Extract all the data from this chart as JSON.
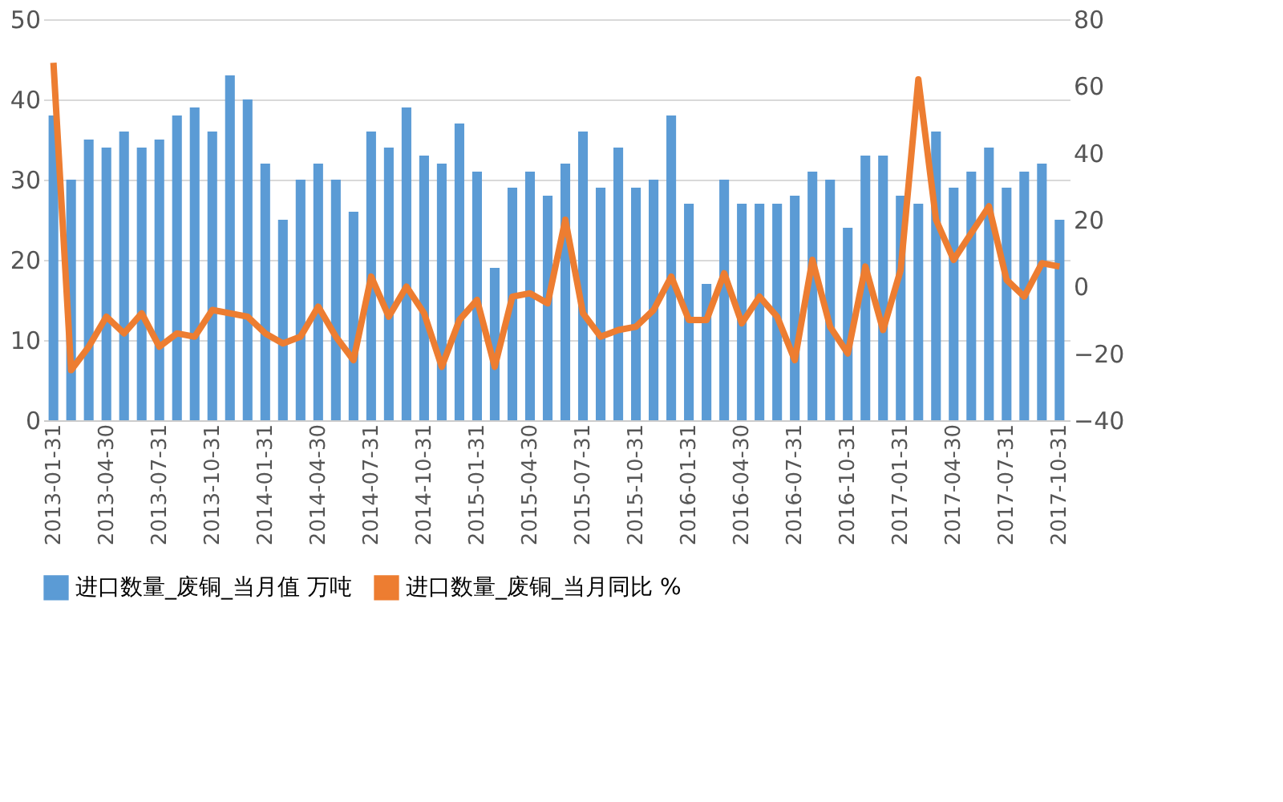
{
  "chart_data": {
    "type": "bar",
    "categories": [
      "2013-01-31",
      null,
      null,
      "2013-04-30",
      null,
      null,
      "2013-07-31",
      null,
      null,
      "2013-10-31",
      null,
      null,
      "2014-01-31",
      null,
      null,
      "2014-04-30",
      null,
      null,
      "2014-07-31",
      null,
      null,
      "2014-10-31",
      null,
      null,
      "2015-01-31",
      null,
      null,
      "2015-04-30",
      null,
      null,
      "2015-07-31",
      null,
      null,
      "2015-10-31",
      null,
      null,
      "2016-01-31",
      null,
      null,
      "2016-04-30",
      null,
      null,
      "2016-07-31",
      null,
      null,
      "2016-10-31",
      null,
      null,
      "2017-01-31",
      null,
      null,
      "2017-04-30",
      null,
      null,
      "2017-07-31",
      null,
      null,
      "2017-10-31"
    ],
    "series": [
      {
        "name": "进口数量_废铜_当月值 万吨",
        "color": "#5b9bd5",
        "values": [
          38,
          30,
          35,
          34,
          36,
          34,
          35,
          38,
          39,
          36,
          43,
          40,
          32,
          25,
          30,
          32,
          30,
          26,
          36,
          34,
          39,
          33,
          32,
          37,
          31,
          19,
          29,
          31,
          28,
          32,
          36,
          29,
          34,
          29,
          30,
          38,
          27,
          17,
          30,
          27,
          27,
          27,
          28,
          31,
          30,
          24,
          33,
          33,
          28,
          27,
          36,
          29,
          31,
          34,
          29,
          31,
          32,
          25
        ]
      },
      {
        "name": "进口数量_废铜_当月同比 %",
        "type": "line",
        "axis": "y2",
        "color": "#ed7d31",
        "values": [
          67,
          -25,
          -18,
          -9,
          -14,
          -8,
          -18,
          -14,
          -15,
          -7,
          -8,
          -9,
          -14,
          -17,
          -15,
          -6,
          -15,
          -22,
          3,
          -9,
          0,
          -8,
          -24,
          -10,
          -4,
          -24,
          -3,
          -2,
          -5,
          20,
          -8,
          -15,
          -13,
          -12,
          -7,
          3,
          -10,
          -10,
          4,
          -11,
          -3,
          -9,
          -22,
          8,
          -12,
          -20,
          6,
          -13,
          5,
          62,
          20,
          8,
          16,
          24,
          2,
          -3,
          7,
          6
        ]
      }
    ],
    "ylim": [
      0,
      50
    ],
    "yticks": [
      0,
      10,
      20,
      30,
      40,
      50
    ],
    "y2lim": [
      -40,
      80
    ],
    "y2ticks": [
      -40,
      -20,
      0,
      20,
      40,
      60,
      80
    ],
    "grid": "y",
    "legend": "bottom"
  }
}
